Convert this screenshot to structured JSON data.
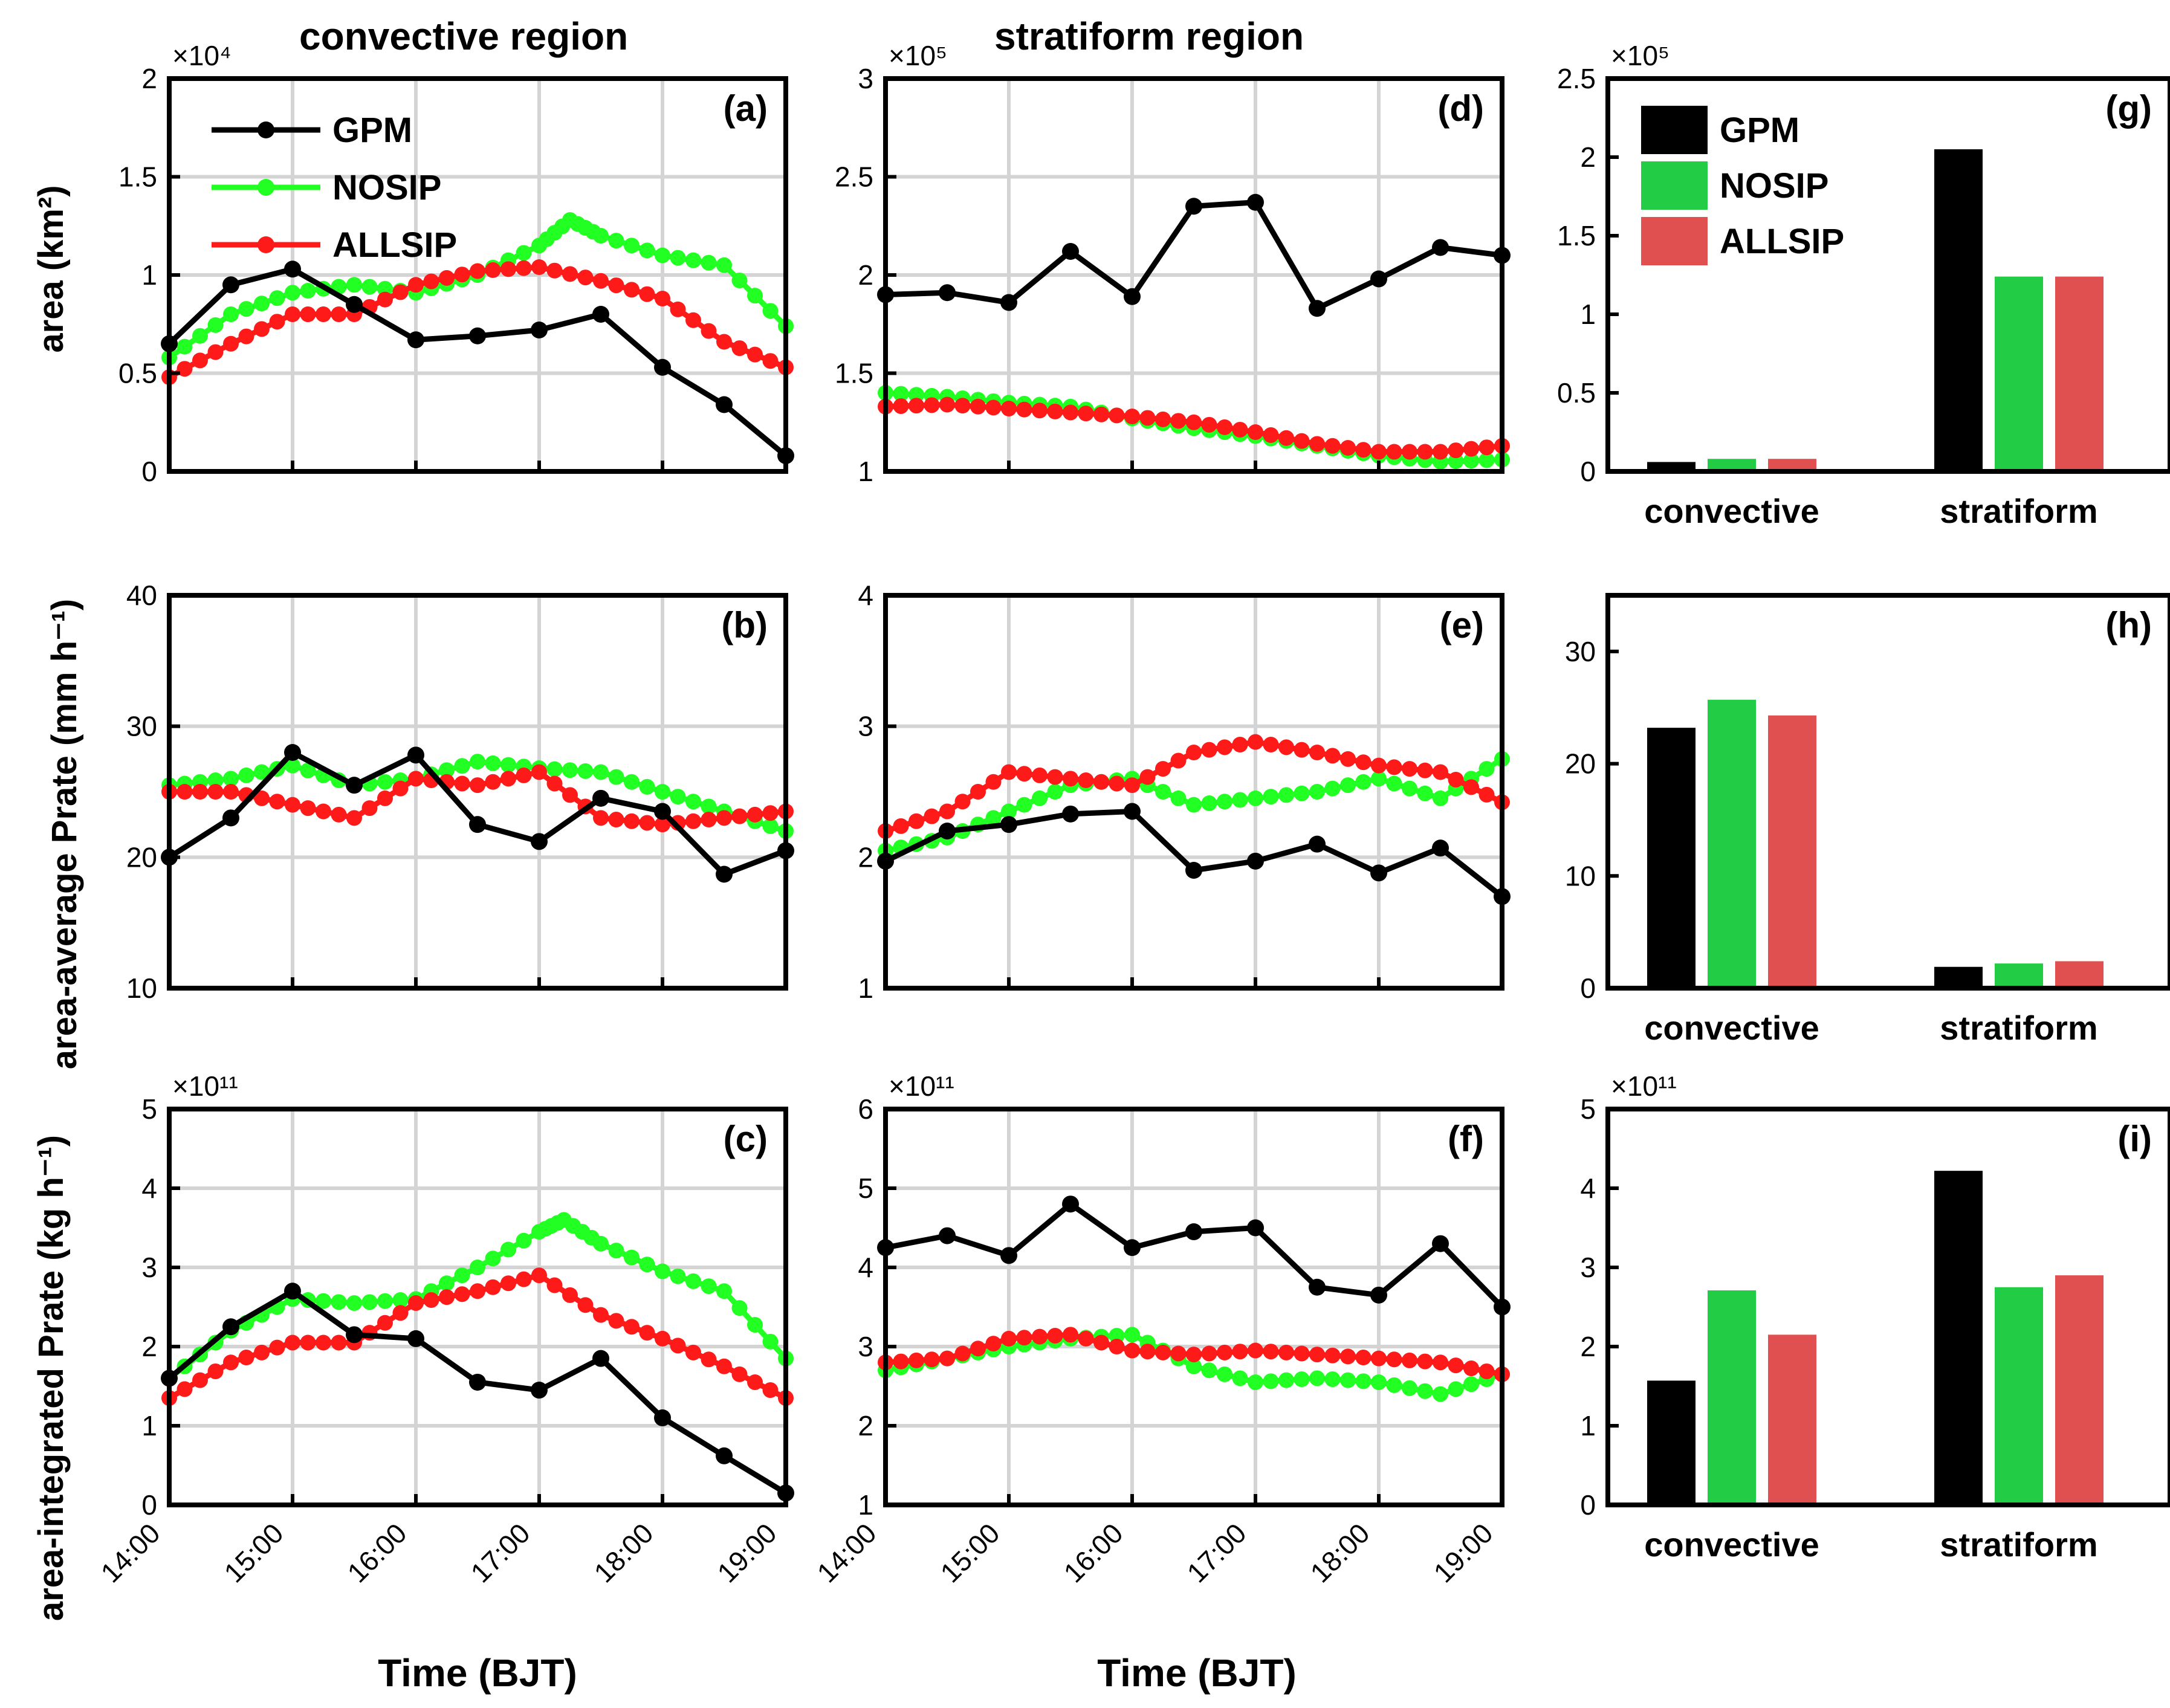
{
  "figure": {
    "column_titles": [
      "convective region",
      "stratiform region"
    ],
    "row_ylabels": [
      "area (km²)",
      "area-average Prate (mm h⁻¹)",
      "area-integrated Prate (kg h⁻¹)"
    ],
    "xlabel": "Time (BJT)",
    "time_ticks": [
      "14:00",
      "15:00",
      "16:00",
      "17:00",
      "18:00",
      "19:00"
    ],
    "bar_categories": [
      "convective",
      "stratiform"
    ],
    "legend": [
      {
        "name": "GPM",
        "color": "#000000"
      },
      {
        "name": "NOSIP",
        "color": "#22ff22"
      },
      {
        "name": "ALLSIP",
        "color": "#ff1a1a"
      }
    ],
    "bar_legend": [
      {
        "name": "GPM",
        "color": "#000000"
      },
      {
        "name": "NOSIP",
        "color": "#22cc44"
      },
      {
        "name": "ALLSIP",
        "color": "#e05050"
      }
    ]
  },
  "chart_data": [
    {
      "id": "a",
      "panel_label": "(a)",
      "type": "line",
      "title": "convective region",
      "exponent": "×10⁴",
      "ylim": [
        0,
        2
      ],
      "yticks": [
        "0",
        "0.5",
        "1",
        "1.5",
        "2"
      ],
      "xlim": [
        14,
        19
      ],
      "xlabel": "",
      "ylabel": "area (km²)",
      "series": [
        {
          "name": "GPM",
          "x": [
            14,
            14.5,
            15,
            15.5,
            16,
            16.5,
            17,
            17.5,
            18,
            18.5,
            19
          ],
          "values": [
            0.65,
            0.95,
            1.03,
            0.85,
            0.67,
            0.69,
            0.72,
            0.8,
            0.53,
            0.34,
            0.08
          ]
        },
        {
          "name": "NOSIP",
          "x": [
            14,
            14.5,
            15,
            15.5,
            16,
            16.5,
            17,
            17.25,
            17.5,
            18,
            18.5,
            19
          ],
          "values": [
            0.58,
            0.8,
            0.91,
            0.95,
            0.91,
            1.0,
            1.15,
            1.28,
            1.2,
            1.1,
            1.05,
            0.74
          ]
        },
        {
          "name": "ALLSIP",
          "x": [
            14,
            14.5,
            15,
            15.5,
            16,
            16.5,
            17,
            17.5,
            18,
            18.5,
            19
          ],
          "values": [
            0.48,
            0.65,
            0.8,
            0.8,
            0.95,
            1.02,
            1.04,
            0.97,
            0.88,
            0.66,
            0.53
          ]
        }
      ]
    },
    {
      "id": "b",
      "panel_label": "(b)",
      "type": "line",
      "exponent": "",
      "ylim": [
        10,
        40
      ],
      "yticks": [
        "10",
        "20",
        "30",
        "40"
      ],
      "xlim": [
        14,
        19
      ],
      "xlabel": "",
      "ylabel": "area-average Prate (mm h⁻¹)",
      "series": [
        {
          "name": "GPM",
          "x": [
            14,
            14.5,
            15,
            15.5,
            16,
            16.5,
            17,
            17.5,
            18,
            18.5,
            19
          ],
          "values": [
            20,
            23,
            28,
            25.5,
            27.8,
            22.5,
            21.2,
            24.5,
            23.5,
            18.7,
            20.5
          ]
        },
        {
          "name": "NOSIP",
          "x": [
            14,
            14.5,
            15,
            15.5,
            16,
            16.5,
            17,
            17.5,
            18,
            18.5,
            19
          ],
          "values": [
            25.5,
            26,
            27,
            25.5,
            26,
            27.3,
            26.8,
            26.5,
            25,
            23.5,
            22
          ]
        },
        {
          "name": "ALLSIP",
          "x": [
            14,
            14.5,
            15,
            15.5,
            16,
            16.5,
            17,
            17.5,
            18,
            18.5,
            19
          ],
          "values": [
            25,
            25,
            24,
            23,
            26,
            25.5,
            26.5,
            23,
            22.5,
            23,
            23.5
          ]
        }
      ]
    },
    {
      "id": "c",
      "panel_label": "(c)",
      "type": "line",
      "exponent": "×10¹¹",
      "ylim": [
        0,
        5
      ],
      "yticks": [
        "0",
        "1",
        "2",
        "3",
        "4",
        "5"
      ],
      "xlim": [
        14,
        19
      ],
      "xlabel": "Time (BJT)",
      "ylabel": "area-integrated Prate (kg h⁻¹)",
      "series": [
        {
          "name": "GPM",
          "x": [
            14,
            14.5,
            15,
            15.5,
            16,
            16.5,
            17,
            17.5,
            18,
            18.5,
            19
          ],
          "values": [
            1.6,
            2.25,
            2.7,
            2.15,
            2.1,
            1.55,
            1.45,
            1.85,
            1.1,
            0.62,
            0.15
          ]
        },
        {
          "name": "NOSIP",
          "x": [
            14,
            14.5,
            15,
            15.5,
            16,
            16.5,
            17,
            17.2,
            17.5,
            18,
            18.5,
            19
          ],
          "values": [
            1.6,
            2.2,
            2.6,
            2.55,
            2.6,
            3.0,
            3.45,
            3.6,
            3.3,
            2.95,
            2.7,
            1.85
          ]
        },
        {
          "name": "ALLSIP",
          "x": [
            14,
            14.5,
            15,
            15.5,
            16,
            16.5,
            17,
            17.5,
            18,
            18.5,
            19
          ],
          "values": [
            1.35,
            1.8,
            2.05,
            2.05,
            2.55,
            2.7,
            2.9,
            2.4,
            2.1,
            1.75,
            1.35
          ]
        }
      ]
    },
    {
      "id": "d",
      "panel_label": "(d)",
      "type": "line",
      "title": "stratiform region",
      "exponent": "×10⁵",
      "ylim": [
        1,
        3
      ],
      "yticks": [
        "1",
        "1.5",
        "2",
        "2.5",
        "3"
      ],
      "xlim": [
        14,
        19
      ],
      "xlabel": "",
      "ylabel": "",
      "series": [
        {
          "name": "GPM",
          "x": [
            14,
            14.5,
            15,
            15.5,
            16,
            16.5,
            17,
            17.5,
            18,
            18.5,
            19
          ],
          "values": [
            1.9,
            1.91,
            1.86,
            2.12,
            1.89,
            2.35,
            2.37,
            1.83,
            1.98,
            2.14,
            2.1
          ]
        },
        {
          "name": "NOSIP",
          "x": [
            14,
            14.5,
            15,
            15.5,
            16,
            16.5,
            17,
            17.5,
            18,
            18.5,
            19
          ],
          "values": [
            1.4,
            1.38,
            1.35,
            1.33,
            1.27,
            1.22,
            1.18,
            1.13,
            1.08,
            1.05,
            1.06
          ]
        },
        {
          "name": "ALLSIP",
          "x": [
            14,
            14.5,
            15,
            15.5,
            16,
            16.5,
            17,
            17.5,
            18,
            18.5,
            19
          ],
          "values": [
            1.33,
            1.34,
            1.32,
            1.3,
            1.28,
            1.25,
            1.2,
            1.14,
            1.1,
            1.1,
            1.13
          ]
        }
      ]
    },
    {
      "id": "e",
      "panel_label": "(e)",
      "type": "line",
      "exponent": "",
      "ylim": [
        1,
        4
      ],
      "yticks": [
        "1",
        "2",
        "3",
        "4"
      ],
      "xlim": [
        14,
        19
      ],
      "xlabel": "",
      "ylabel": "",
      "series": [
        {
          "name": "GPM",
          "x": [
            14,
            14.5,
            15,
            15.5,
            16,
            16.5,
            17,
            17.5,
            18,
            18.5,
            19
          ],
          "values": [
            1.97,
            2.2,
            2.25,
            2.33,
            2.35,
            1.9,
            1.97,
            2.1,
            1.88,
            2.07,
            1.7
          ]
        },
        {
          "name": "NOSIP",
          "x": [
            14,
            14.5,
            15,
            15.5,
            16,
            16.5,
            17,
            17.5,
            18,
            18.5,
            19
          ],
          "values": [
            2.05,
            2.15,
            2.35,
            2.55,
            2.6,
            2.4,
            2.45,
            2.5,
            2.6,
            2.45,
            2.75
          ]
        },
        {
          "name": "ALLSIP",
          "x": [
            14,
            14.5,
            15,
            15.5,
            16,
            16.5,
            17,
            17.5,
            18,
            18.5,
            19
          ],
          "values": [
            2.2,
            2.35,
            2.65,
            2.6,
            2.55,
            2.8,
            2.88,
            2.8,
            2.7,
            2.65,
            2.42
          ]
        }
      ]
    },
    {
      "id": "f",
      "panel_label": "(f)",
      "type": "line",
      "exponent": "×10¹¹",
      "ylim": [
        1,
        6
      ],
      "yticks": [
        "1",
        "2",
        "3",
        "4",
        "5",
        "6"
      ],
      "xlim": [
        14,
        19
      ],
      "xlabel": "Time (BJT)",
      "ylabel": "",
      "series": [
        {
          "name": "GPM",
          "x": [
            14,
            14.5,
            15,
            15.5,
            16,
            16.5,
            17,
            17.5,
            18,
            18.5,
            19
          ],
          "values": [
            4.25,
            4.4,
            4.15,
            4.8,
            4.25,
            4.45,
            4.5,
            3.75,
            3.65,
            4.3,
            3.5
          ]
        },
        {
          "name": "NOSIP",
          "x": [
            14,
            14.5,
            15,
            15.5,
            16,
            16.5,
            17,
            17.5,
            18,
            18.5,
            19
          ],
          "values": [
            2.7,
            2.85,
            3.0,
            3.1,
            3.15,
            2.75,
            2.55,
            2.6,
            2.55,
            2.4,
            2.65
          ]
        },
        {
          "name": "ALLSIP",
          "x": [
            14,
            14.5,
            15,
            15.5,
            16,
            16.5,
            17,
            17.5,
            18,
            18.5,
            19
          ],
          "values": [
            2.8,
            2.85,
            3.1,
            3.15,
            2.95,
            2.9,
            2.95,
            2.9,
            2.85,
            2.8,
            2.65
          ]
        }
      ]
    },
    {
      "id": "g",
      "panel_label": "(g)",
      "type": "bar",
      "exponent": "×10⁵",
      "ylim": [
        0,
        2.5
      ],
      "yticks": [
        "0",
        "0.5",
        "1",
        "1.5",
        "2",
        "2.5"
      ],
      "categories": [
        "convective",
        "stratiform"
      ],
      "xlabel": "",
      "ylabel": "",
      "series": [
        {
          "name": "GPM",
          "values": [
            0.06,
            2.05
          ]
        },
        {
          "name": "NOSIP",
          "values": [
            0.08,
            1.24
          ]
        },
        {
          "name": "ALLSIP",
          "values": [
            0.08,
            1.24
          ]
        }
      ]
    },
    {
      "id": "h",
      "panel_label": "(h)",
      "type": "bar",
      "exponent": "",
      "ylim": [
        0,
        35
      ],
      "yticks": [
        "0",
        "10",
        "20",
        "30"
      ],
      "categories": [
        "convective",
        "stratiform"
      ],
      "xlabel": "",
      "ylabel": "",
      "series": [
        {
          "name": "GPM",
          "values": [
            23.2,
            1.9
          ]
        },
        {
          "name": "NOSIP",
          "values": [
            25.7,
            2.2
          ]
        },
        {
          "name": "ALLSIP",
          "values": [
            24.3,
            2.4
          ]
        }
      ]
    },
    {
      "id": "i",
      "panel_label": "(i)",
      "type": "bar",
      "exponent": "×10¹¹",
      "ylim": [
        0,
        5
      ],
      "yticks": [
        "0",
        "1",
        "2",
        "3",
        "4",
        "5"
      ],
      "categories": [
        "convective",
        "stratiform"
      ],
      "xlabel": "",
      "ylabel": "",
      "series": [
        {
          "name": "GPM",
          "values": [
            1.57,
            4.22
          ]
        },
        {
          "name": "NOSIP",
          "values": [
            2.71,
            2.75
          ]
        },
        {
          "name": "ALLSIP",
          "values": [
            2.15,
            2.9
          ]
        }
      ]
    }
  ]
}
